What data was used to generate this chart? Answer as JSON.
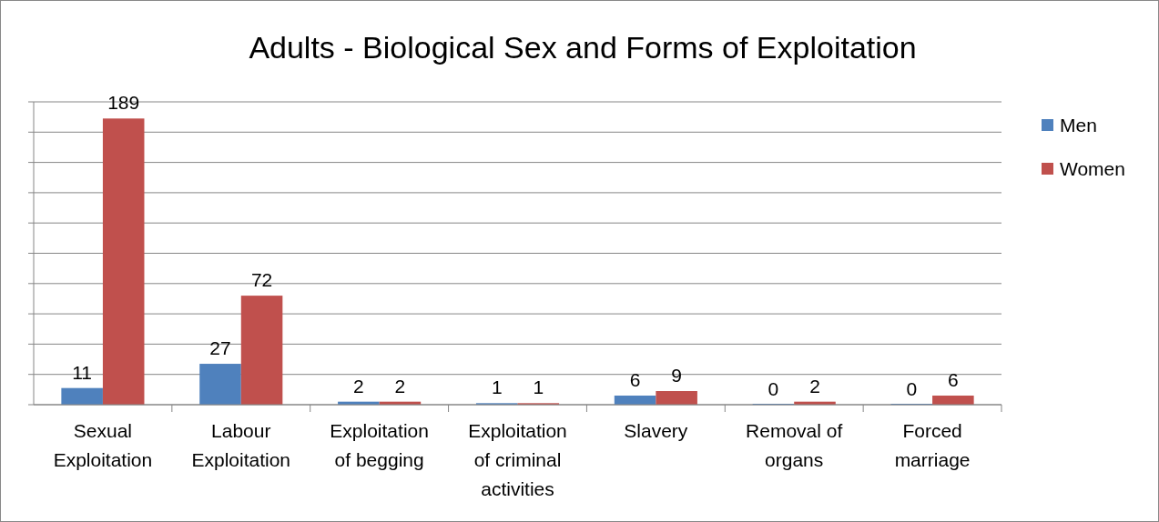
{
  "chart_data": {
    "type": "bar",
    "title": "Adults - Biological Sex and Forms of Exploitation",
    "categories": [
      "Sexual Exploitation",
      "Labour Exploitation",
      "Exploitation of begging",
      "Exploitation of criminal activities",
      "Slavery",
      "Removal of organs",
      "Forced marriage"
    ],
    "series": [
      {
        "name": "Men",
        "color": "#4f81bd",
        "values": [
          11,
          27,
          2,
          1,
          6,
          0,
          0
        ]
      },
      {
        "name": "Women",
        "color": "#c0504d",
        "values": [
          189,
          72,
          2,
          1,
          9,
          2,
          6
        ]
      }
    ],
    "ylim": [
      0,
      200
    ],
    "yticks": [
      {
        "value": 0,
        "label": null
      },
      {
        "value": 20,
        "label": null
      },
      {
        "value": 40,
        "label": null
      },
      {
        "value": 60,
        "label": null
      },
      {
        "value": 80,
        "label": null
      },
      {
        "value": 100,
        "label": null
      },
      {
        "value": 120,
        "label": null
      },
      {
        "value": 140,
        "label": null
      },
      {
        "value": 160,
        "label": null
      },
      {
        "value": 180,
        "label": null
      },
      {
        "value": 200,
        "label": null
      }
    ],
    "tick_labels": "x",
    "grid": "y",
    "legend": "right",
    "data_labels": true
  }
}
